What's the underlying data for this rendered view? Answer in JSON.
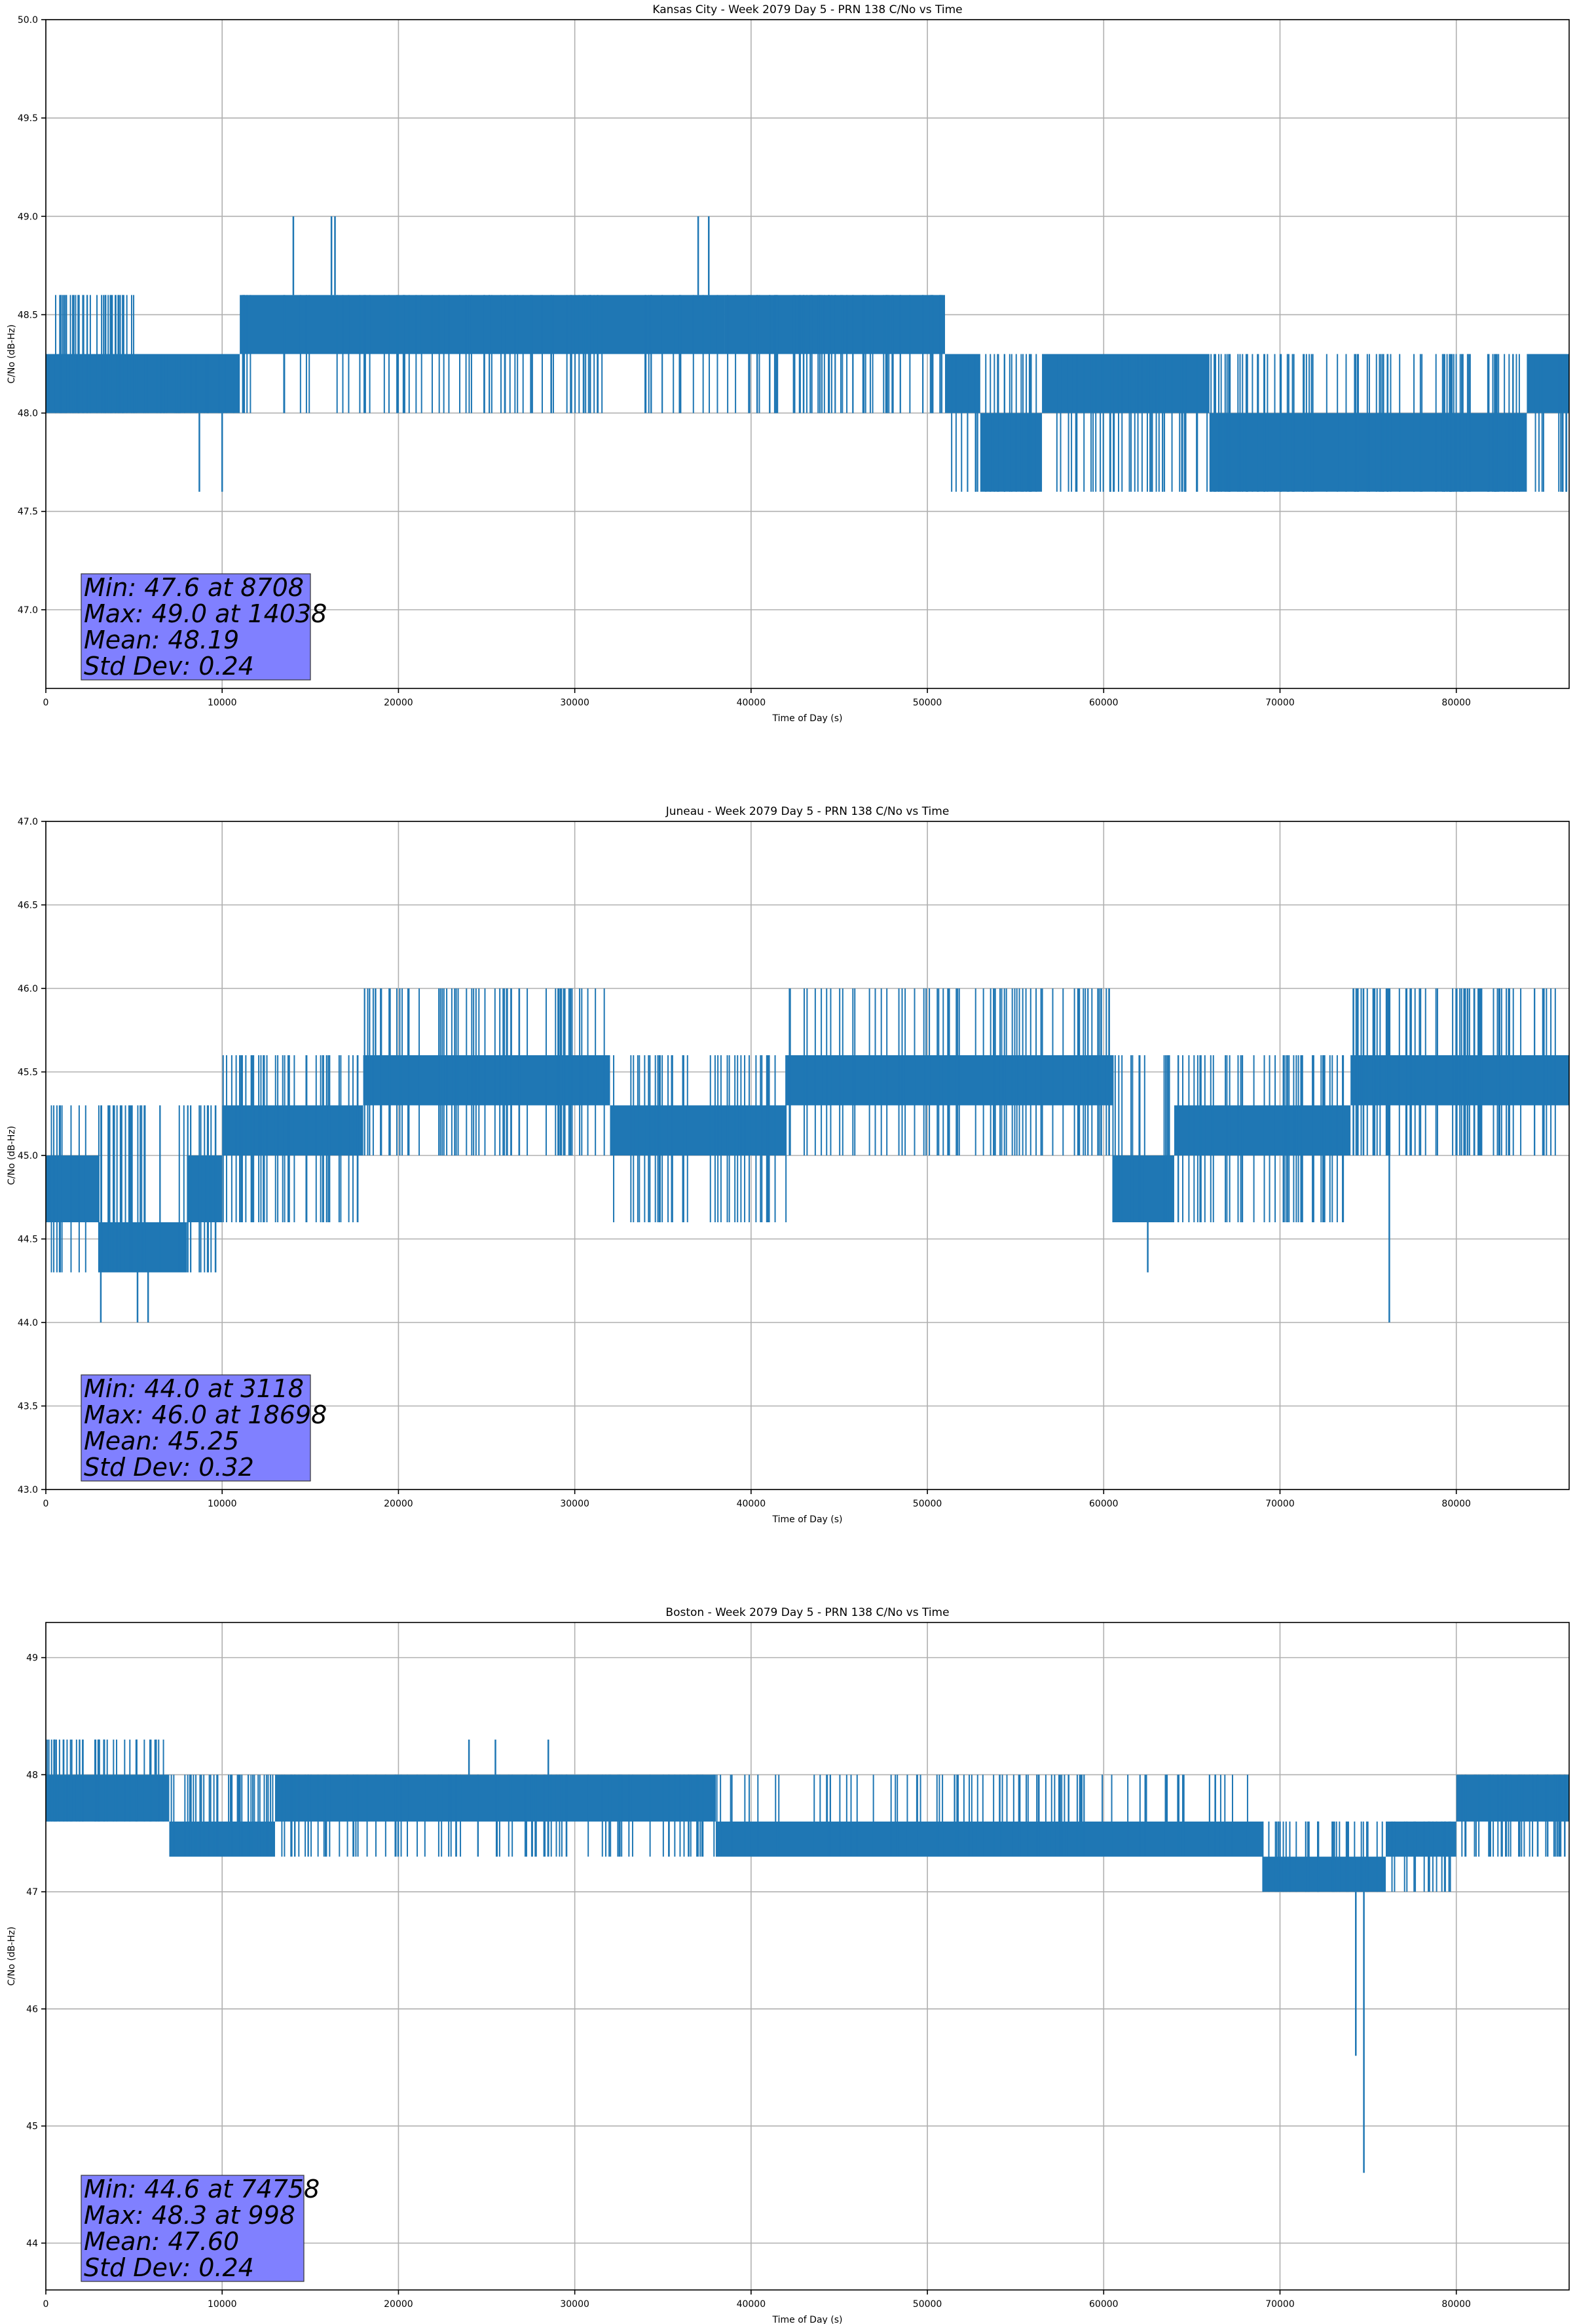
{
  "figure": {
    "background": "#ffffff",
    "line_color": "#1f77b4",
    "stats_box_color": "#8080ff"
  },
  "chart_data": [
    {
      "type": "line",
      "title": "Kansas City - Week 2079 Day 5 - PRN 138 C/No vs Time",
      "xlabel": "Time of Day (s)",
      "ylabel": "C/No (dB-Hz)",
      "xlim": [
        0,
        86400
      ],
      "ylim": [
        46.6,
        50.0
      ],
      "xticks": [
        0,
        10000,
        20000,
        30000,
        40000,
        50000,
        60000,
        70000,
        80000
      ],
      "xtick_labels": [
        "0",
        "10000",
        "20000",
        "30000",
        "40000",
        "50000",
        "60000",
        "70000",
        "80000"
      ],
      "yticks": [
        47.0,
        47.5,
        48.0,
        48.5,
        49.0,
        49.5,
        50.0
      ],
      "ytick_labels": [
        "47.0",
        "47.5",
        "48.0",
        "48.5",
        "49.0",
        "49.5",
        "50.0"
      ],
      "grid": true,
      "series": [
        {
          "name": "C/No",
          "bands": [
            {
              "x0": 0,
              "x1": 11000,
              "lo": 48.0,
              "hi": 48.3
            },
            {
              "x0": 11000,
              "x1": 38500,
              "lo": 48.3,
              "hi": 48.6
            },
            {
              "x0": 38500,
              "x1": 51000,
              "lo": 48.3,
              "hi": 48.6
            },
            {
              "x0": 51000,
              "x1": 53000,
              "lo": 48.0,
              "hi": 48.3
            },
            {
              "x0": 53000,
              "x1": 56500,
              "lo": 47.6,
              "hi": 48.0
            },
            {
              "x0": 56500,
              "x1": 66000,
              "lo": 48.0,
              "hi": 48.3
            },
            {
              "x0": 66000,
              "x1": 84000,
              "lo": 47.6,
              "hi": 48.0
            },
            {
              "x0": 84000,
              "x1": 86400,
              "lo": 48.0,
              "hi": 48.3
            }
          ],
          "spike_regions": [
            {
              "x0": 0,
              "x1": 5000,
              "lo": 48.0,
              "hi": 48.6,
              "n": 40
            },
            {
              "x0": 5000,
              "x1": 11000,
              "lo": 48.0,
              "hi": 48.3,
              "n": 30
            },
            {
              "x0": 11000,
              "x1": 40000,
              "lo": 48.0,
              "hi": 48.6,
              "n": 90
            },
            {
              "x0": 40000,
              "x1": 51000,
              "lo": 48.0,
              "hi": 48.6,
              "n": 60
            },
            {
              "x0": 51000,
              "x1": 66000,
              "lo": 47.6,
              "hi": 48.3,
              "n": 70
            },
            {
              "x0": 66000,
              "x1": 86400,
              "lo": 47.6,
              "hi": 48.3,
              "n": 100
            }
          ],
          "spikes": [
            {
              "x": 8708,
              "lo": 47.6,
              "hi": 48.0
            },
            {
              "x": 10000,
              "lo": 47.6,
              "hi": 48.0
            },
            {
              "x": 14038,
              "lo": 48.6,
              "hi": 49.0
            },
            {
              "x": 16200,
              "lo": 48.6,
              "hi": 49.0
            },
            {
              "x": 16400,
              "lo": 48.6,
              "hi": 49.0
            },
            {
              "x": 37000,
              "lo": 48.6,
              "hi": 49.0
            },
            {
              "x": 37600,
              "lo": 48.6,
              "hi": 49.0
            }
          ]
        }
      ],
      "stats": [
        "Min: 47.6 at 8708",
        "Max: 49.0 at 14038",
        "Mean: 48.19",
        "Std Dev: 0.24"
      ]
    },
    {
      "type": "line",
      "title": "Juneau - Week 2079 Day 5 - PRN 138 C/No vs Time",
      "xlabel": "Time of Day (s)",
      "ylabel": "C/No (dB-Hz)",
      "xlim": [
        0,
        86400
      ],
      "ylim": [
        43.0,
        47.0
      ],
      "xticks": [
        0,
        10000,
        20000,
        30000,
        40000,
        50000,
        60000,
        70000,
        80000
      ],
      "xtick_labels": [
        "0",
        "10000",
        "20000",
        "30000",
        "40000",
        "50000",
        "60000",
        "70000",
        "80000"
      ],
      "yticks": [
        43.0,
        43.5,
        44.0,
        44.5,
        45.0,
        45.5,
        46.0,
        46.5,
        47.0
      ],
      "ytick_labels": [
        "43.0",
        "43.5",
        "44.0",
        "44.5",
        "45.0",
        "45.5",
        "46.0",
        "46.5",
        "47.0"
      ],
      "grid": true,
      "series": [
        {
          "name": "C/No",
          "bands": [
            {
              "x0": 0,
              "x1": 3000,
              "lo": 44.6,
              "hi": 45.0
            },
            {
              "x0": 3000,
              "x1": 8000,
              "lo": 44.3,
              "hi": 44.6
            },
            {
              "x0": 8000,
              "x1": 10000,
              "lo": 44.6,
              "hi": 45.0
            },
            {
              "x0": 10000,
              "x1": 18000,
              "lo": 45.0,
              "hi": 45.3
            },
            {
              "x0": 18000,
              "x1": 32000,
              "lo": 45.3,
              "hi": 45.6
            },
            {
              "x0": 32000,
              "x1": 42000,
              "lo": 45.0,
              "hi": 45.3
            },
            {
              "x0": 42000,
              "x1": 60500,
              "lo": 45.3,
              "hi": 45.6
            },
            {
              "x0": 60500,
              "x1": 64000,
              "lo": 44.6,
              "hi": 45.0
            },
            {
              "x0": 64000,
              "x1": 74000,
              "lo": 45.0,
              "hi": 45.3
            },
            {
              "x0": 74000,
              "x1": 86400,
              "lo": 45.3,
              "hi": 45.6
            }
          ],
          "spike_regions": [
            {
              "x0": 0,
              "x1": 10000,
              "lo": 44.3,
              "hi": 45.3,
              "n": 50
            },
            {
              "x0": 10000,
              "x1": 18000,
              "lo": 44.6,
              "hi": 45.6,
              "n": 40
            },
            {
              "x0": 18000,
              "x1": 32000,
              "lo": 45.0,
              "hi": 46.0,
              "n": 60
            },
            {
              "x0": 32000,
              "x1": 42000,
              "lo": 44.6,
              "hi": 45.6,
              "n": 40
            },
            {
              "x0": 42000,
              "x1": 60500,
              "lo": 45.0,
              "hi": 46.0,
              "n": 70
            },
            {
              "x0": 60500,
              "x1": 74000,
              "lo": 44.6,
              "hi": 45.6,
              "n": 60
            },
            {
              "x0": 74000,
              "x1": 86400,
              "lo": 45.0,
              "hi": 46.0,
              "n": 70
            }
          ],
          "spikes": [
            {
              "x": 3118,
              "lo": 44.0,
              "hi": 44.3
            },
            {
              "x": 5200,
              "lo": 44.0,
              "hi": 44.3
            },
            {
              "x": 5800,
              "lo": 44.0,
              "hi": 44.3
            },
            {
              "x": 18698,
              "lo": 45.6,
              "hi": 46.0
            },
            {
              "x": 62500,
              "lo": 44.3,
              "hi": 44.6
            },
            {
              "x": 76200,
              "lo": 44.0,
              "hi": 45.0
            }
          ]
        }
      ],
      "stats": [
        "Min: 44.0 at 3118",
        "Max: 46.0 at 18698",
        "Mean: 45.25",
        "Std Dev: 0.32"
      ]
    },
    {
      "type": "line",
      "title": "Boston - Week 2079 Day 5 - PRN 138 C/No vs Time",
      "xlabel": "Time of Day (s)",
      "ylabel": "C/No (dB-Hz)",
      "xlim": [
        0,
        86400
      ],
      "ylim": [
        43.6,
        49.3
      ],
      "xticks": [
        0,
        10000,
        20000,
        30000,
        40000,
        50000,
        60000,
        70000,
        80000
      ],
      "xtick_labels": [
        "0",
        "10000",
        "20000",
        "30000",
        "40000",
        "50000",
        "60000",
        "70000",
        "80000"
      ],
      "yticks": [
        44,
        45,
        46,
        47,
        48,
        49
      ],
      "ytick_labels": [
        "44",
        "45",
        "46",
        "47",
        "48",
        "49"
      ],
      "grid": true,
      "series": [
        {
          "name": "C/No",
          "bands": [
            {
              "x0": 0,
              "x1": 7000,
              "lo": 47.6,
              "hi": 48.0
            },
            {
              "x0": 7000,
              "x1": 13000,
              "lo": 47.3,
              "hi": 47.6
            },
            {
              "x0": 13000,
              "x1": 38000,
              "lo": 47.6,
              "hi": 48.0
            },
            {
              "x0": 38000,
              "x1": 69000,
              "lo": 47.3,
              "hi": 47.6
            },
            {
              "x0": 69000,
              "x1": 76000,
              "lo": 47.0,
              "hi": 47.3
            },
            {
              "x0": 76000,
              "x1": 80000,
              "lo": 47.3,
              "hi": 47.6
            },
            {
              "x0": 80000,
              "x1": 86400,
              "lo": 47.6,
              "hi": 48.0
            }
          ],
          "spike_regions": [
            {
              "x0": 0,
              "x1": 7000,
              "lo": 47.6,
              "hi": 48.3,
              "n": 40
            },
            {
              "x0": 7000,
              "x1": 13000,
              "lo": 47.3,
              "hi": 48.0,
              "n": 40
            },
            {
              "x0": 13000,
              "x1": 38000,
              "lo": 47.3,
              "hi": 48.0,
              "n": 90
            },
            {
              "x0": 38000,
              "x1": 69000,
              "lo": 47.3,
              "hi": 48.0,
              "n": 90
            },
            {
              "x0": 69000,
              "x1": 80000,
              "lo": 47.0,
              "hi": 47.6,
              "n": 50
            },
            {
              "x0": 80000,
              "x1": 86400,
              "lo": 47.3,
              "hi": 48.0,
              "n": 40
            }
          ],
          "spikes": [
            {
              "x": 998,
              "lo": 48.0,
              "hi": 48.3
            },
            {
              "x": 3000,
              "lo": 48.0,
              "hi": 48.3
            },
            {
              "x": 6200,
              "lo": 48.0,
              "hi": 48.3
            },
            {
              "x": 24000,
              "lo": 48.0,
              "hi": 48.3
            },
            {
              "x": 25500,
              "lo": 48.0,
              "hi": 48.3
            },
            {
              "x": 28500,
              "lo": 48.0,
              "hi": 48.3
            },
            {
              "x": 74300,
              "lo": 45.6,
              "hi": 47.0
            },
            {
              "x": 74758,
              "lo": 44.6,
              "hi": 47.0
            }
          ]
        }
      ],
      "stats": [
        "Min: 44.6 at 74758",
        "Max: 48.3 at 998",
        "Mean: 47.60",
        "Std Dev: 0.24"
      ]
    }
  ]
}
